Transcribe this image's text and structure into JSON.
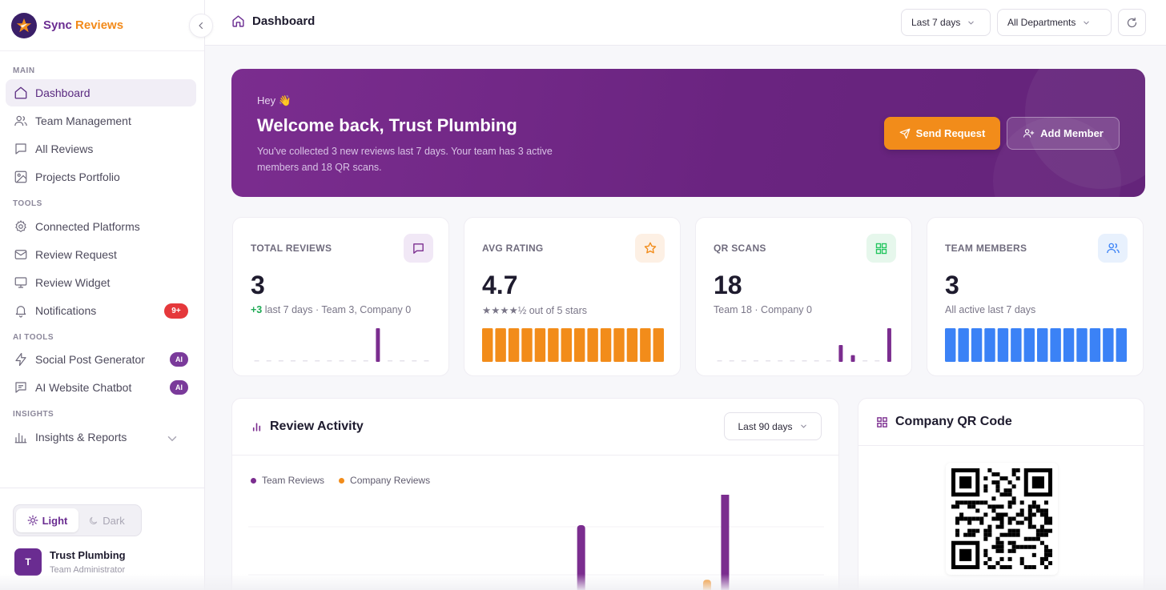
{
  "brand": {
    "name_part1": "Sync",
    "name_part2": " Reviews"
  },
  "sidebar": {
    "sections": {
      "main": "MAIN",
      "tools": "TOOLS",
      "ai_tools": "AI TOOLS",
      "insights": "INSIGHTS"
    },
    "items": [
      {
        "label": "Dashboard",
        "icon": "home-icon",
        "active": true
      },
      {
        "label": "Team Management",
        "icon": "users-icon"
      },
      {
        "label": "All Reviews",
        "icon": "message-icon"
      },
      {
        "label": "Projects Portfolio",
        "icon": "image-icon"
      },
      {
        "label": "Connected Platforms",
        "icon": "gear-icon"
      },
      {
        "label": "Review Request",
        "icon": "mail-icon"
      },
      {
        "label": "Review Widget",
        "icon": "monitor-icon"
      },
      {
        "label": "Notifications",
        "icon": "bell-icon",
        "badge": "9+"
      },
      {
        "label": "Social Post Generator",
        "icon": "bolt-icon",
        "badge": "AI"
      },
      {
        "label": "AI Website Chatbot",
        "icon": "chat-icon",
        "badge": "AI"
      },
      {
        "label": "Insights & Reports",
        "icon": "bar-chart-icon"
      }
    ],
    "theme": {
      "light": "Light",
      "dark": "Dark",
      "selected": "Light"
    },
    "user": {
      "initial": "T",
      "name": "Trust Plumbing",
      "role": "Team Administrator"
    }
  },
  "topbar": {
    "breadcrumb": "Dashboard",
    "range_select": "Last 7 days",
    "department_select": "All Departments"
  },
  "hero": {
    "greeting": "Hey 👋",
    "title": "Welcome back, Trust Plumbing",
    "subtitle": "You've collected 3 new reviews last 7 days. Your team has 3 active members and 18 QR scans.",
    "send_label": "Send Request",
    "add_label": "Add Member"
  },
  "stats": {
    "total_reviews": {
      "label": "TOTAL REVIEWS",
      "value": "3",
      "delta": "+3",
      "sub": " last 7 days · Team 3, Company 0"
    },
    "avg_rating": {
      "label": "AVG RATING",
      "value": "4.7",
      "stars": "★★★★½",
      "sub": " out of 5 stars"
    },
    "qr_scans": {
      "label": "QR SCANS",
      "value": "18",
      "sub": "Team 18 · Company 0"
    },
    "team_members": {
      "label": "TEAM MEMBERS",
      "value": "3",
      "sub": "All active last 7 days"
    }
  },
  "colors": {
    "purple": "#7b2d8f",
    "orange": "#f28c1a",
    "blue": "#3b82f6",
    "green": "#22c55e"
  },
  "activity": {
    "title": "Review Activity",
    "range": "Last 90 days",
    "legend_team": "Team Reviews",
    "legend_company": "Company Reviews"
  },
  "qr": {
    "title": "Company QR Code"
  },
  "chart_data": [
    {
      "type": "bar",
      "name": "total-reviews-sparkline",
      "values": [
        0,
        0,
        0,
        0,
        0,
        0,
        0,
        0,
        0,
        0,
        1,
        0,
        0,
        0,
        0
      ]
    },
    {
      "type": "bar",
      "name": "avg-rating-sparkline",
      "values": [
        1,
        1,
        1,
        1,
        1,
        1,
        1,
        1,
        1,
        1,
        1,
        1,
        1,
        1
      ]
    },
    {
      "type": "bar",
      "name": "qr-scans-sparkline",
      "values": [
        0,
        0,
        0,
        0,
        0,
        0,
        0,
        0,
        0,
        0,
        5,
        2,
        0,
        0,
        10
      ]
    },
    {
      "type": "bar",
      "name": "team-members-sparkline",
      "values": [
        1,
        1,
        1,
        1,
        1,
        1,
        1,
        1,
        1,
        1,
        1,
        1,
        1,
        1
      ]
    },
    {
      "type": "bar",
      "name": "review-activity",
      "series": [
        {
          "name": "Team Reviews",
          "values": [
            0,
            0,
            0,
            0,
            0,
            0,
            0,
            0,
            0,
            0,
            0,
            0,
            0,
            0,
            0,
            0,
            0,
            0,
            1,
            0,
            0,
            0,
            0,
            0,
            0,
            0,
            1.4,
            0,
            0,
            0,
            0,
            0
          ]
        },
        {
          "name": "Company Reviews",
          "values": [
            0,
            0,
            0,
            0,
            0,
            0,
            0,
            0,
            0,
            0,
            0,
            0,
            0,
            0,
            0,
            0,
            0,
            0,
            0,
            0,
            0,
            0,
            0,
            0,
            0,
            0.35,
            0,
            0,
            0,
            0,
            0,
            0
          ]
        }
      ]
    }
  ]
}
